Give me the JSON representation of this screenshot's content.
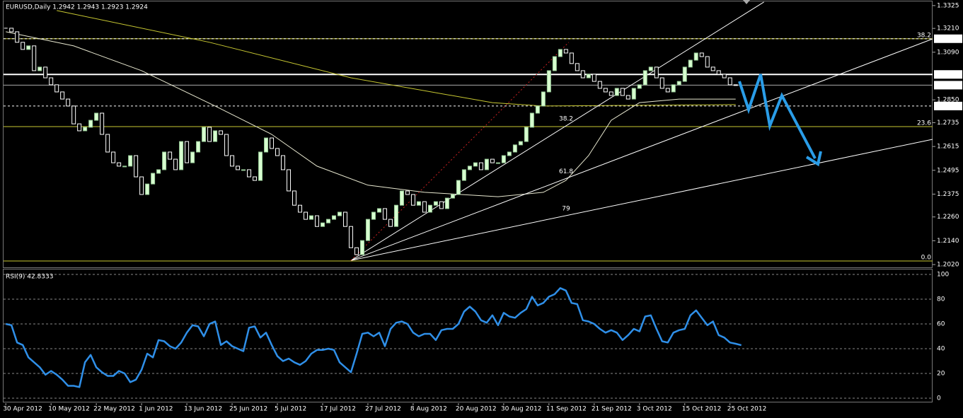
{
  "chart_data": [
    {
      "type": "candlestick",
      "title": "EURUSD,Daily  1.2942 1.2943 1.2923 1.2924",
      "closes": [
        1.3211,
        1.3193,
        1.314,
        1.3104,
        1.3122,
        1.2997,
        1.3015,
        1.2961,
        1.2926,
        1.289,
        1.2854,
        1.2819,
        1.2729,
        1.2694,
        1.2712,
        1.2747,
        1.2783,
        1.2676,
        1.2587,
        1.2533,
        1.2516,
        1.2516,
        1.2569,
        1.2462,
        1.2373,
        1.2426,
        1.248,
        1.2498,
        1.2587,
        1.2551,
        1.2498,
        1.264,
        1.2533,
        1.2587,
        1.264,
        1.2712,
        1.264,
        1.2694,
        1.2676,
        1.2569,
        1.2516,
        1.2498,
        1.2498,
        1.2462,
        1.2444,
        1.2587,
        1.2658,
        1.2605,
        1.2569,
        1.2498,
        1.2391,
        1.2319,
        1.2284,
        1.2248,
        1.2266,
        1.2212,
        1.223,
        1.2248,
        1.2266,
        1.2284,
        1.2212,
        1.2105,
        1.207,
        1.2141,
        1.2248,
        1.2284,
        1.2302,
        1.2248,
        1.2212,
        1.2319,
        1.2391,
        1.2373,
        1.2319,
        1.2337,
        1.2284,
        1.2319,
        1.2337,
        1.2302,
        1.2355,
        1.2373,
        1.2444,
        1.2498,
        1.2516,
        1.2533,
        1.2498,
        1.2551,
        1.2533,
        1.2533,
        1.2569,
        1.2587,
        1.2623,
        1.264,
        1.2712,
        1.2783,
        1.2819,
        1.289,
        1.2997,
        1.3068,
        1.3104,
        1.3086,
        1.3033,
        1.2997,
        1.2961,
        1.2979,
        1.2943,
        1.2908,
        1.289,
        1.2872,
        1.2908,
        1.2872,
        1.2854,
        1.2908,
        1.2926,
        1.2997,
        1.3015,
        1.2961,
        1.2908,
        1.289,
        1.2926,
        1.2943,
        1.3015,
        1.305,
        1.3086,
        1.3068,
        1.3015,
        1.2997,
        1.2979,
        1.2961,
        1.2926,
        1.2924
      ],
      "up_color": "#d8ffd0",
      "down_color": "#000000",
      "xlim": [
        -0.4,
        163.8
      ],
      "ylim": [
        1.2006,
        1.3346
      ],
      "yticks": [
        1.3325,
        {
          "value": 1.321,
          "label": "1.3210"
        },
        {
          "value": 1.309,
          "label": "1.3090"
        },
        {
          "value": 1.285,
          "label": "1.2850"
        },
        1.2735,
        1.2615,
        1.2495,
        1.2375,
        {
          "value": 1.226,
          "label": "1.2260"
        },
        {
          "value": 1.214,
          "label": "1.2140"
        },
        {
          "value": 1.202,
          "label": "1.2020"
        }
      ],
      "overlays": [
        {
          "color": "#c8c832",
          "x": [
            9,
            36,
            61,
            86,
            95,
            129
          ],
          "values": [
            1.33,
            1.314,
            1.2961,
            1.2836,
            1.2819,
            1.2826
          ]
        },
        {
          "color": "#e8e8d0",
          "x": [
            0,
            12,
            24,
            37,
            47,
            55,
            64,
            74,
            87,
            95,
            99,
            103,
            107,
            112,
            119,
            129
          ],
          "values": [
            1.3193,
            1.3122,
            1.2997,
            1.2819,
            1.2676,
            1.2516,
            1.242,
            1.2384,
            1.2362,
            1.2384,
            1.2444,
            1.2569,
            1.2747,
            1.2836,
            1.2854,
            1.2854
          ]
        }
      ],
      "fan_lines": [
        {
          "label": "38.2",
          "x": [
            61,
            134
          ],
          "values": [
            1.2041,
            1.3343
          ]
        },
        {
          "label": "61.8",
          "x": [
            61,
            163.8
          ],
          "values": [
            1.2041,
            1.3157
          ]
        },
        {
          "label": "79",
          "x": [
            61,
            163.8
          ],
          "values": [
            1.2041,
            1.2651
          ]
        }
      ],
      "retracement_line": {
        "color": "#cc2222",
        "x": [
          61,
          99.5
        ],
        "values": [
          1.2041,
          1.314
        ]
      },
      "fib_levels": [
        {
          "value": 1.3158,
          "label": "38.2"
        },
        {
          "value": 1.2715,
          "label": "23.6"
        },
        {
          "value": 1.2038,
          "label": "0.0"
        }
      ],
      "levels": [
        {
          "value": 1.3158,
          "style": "dashed"
        },
        {
          "value": 1.2978,
          "style": "solid"
        },
        {
          "value": 1.2924,
          "style": "current"
        },
        {
          "value": 1.2819,
          "style": "dashed"
        }
      ]
    },
    {
      "type": "line",
      "title": "RSI(9) 42.8333",
      "color": "#2f8fe8",
      "values": [
        60,
        59,
        45,
        43,
        33,
        29,
        25,
        19,
        22,
        19,
        15,
        10,
        10,
        9,
        29,
        35,
        25,
        21,
        18,
        18,
        22,
        20,
        13,
        15,
        23,
        36,
        33,
        47,
        46,
        42,
        40,
        45,
        53,
        59,
        58,
        50,
        60,
        62,
        43,
        46,
        42,
        40,
        38,
        57,
        58,
        49,
        53,
        43,
        34,
        30,
        32,
        29,
        27,
        30,
        36,
        39,
        39,
        40,
        39,
        29,
        25,
        21,
        36,
        52,
        53,
        50,
        53,
        42,
        56,
        61,
        62,
        60,
        53,
        50,
        52,
        52,
        47,
        55,
        56,
        56,
        60,
        70,
        74,
        70,
        63,
        61,
        67,
        59,
        69,
        66,
        65,
        69,
        72,
        82,
        75,
        77,
        82,
        84,
        89,
        87,
        77,
        76,
        63,
        62,
        60,
        56,
        53,
        55,
        53,
        47,
        51,
        56,
        54,
        66,
        67,
        56,
        46,
        45,
        53,
        55,
        56,
        67,
        71,
        65,
        59,
        62,
        51,
        49,
        45,
        44,
        42.8333
      ],
      "xlim": [
        -0.4,
        163.8
      ],
      "ylim": [
        -3.4,
        104
      ],
      "yticks": [
        100,
        80,
        60,
        40,
        20,
        0
      ],
      "grid": true,
      "xticks": [
        {
          "value": 0,
          "label": "30 Apr 2012"
        },
        {
          "value": 8,
          "label": "10 May 2012"
        },
        {
          "value": 16,
          "label": "22 May 2012"
        },
        {
          "value": 24,
          "label": "1 Jun 2012"
        },
        {
          "value": 32,
          "label": "13 Jun 2012"
        },
        {
          "value": 40,
          "label": "25 Jun 2012"
        },
        {
          "value": 48,
          "label": "5 Jul 2012"
        },
        {
          "value": 56,
          "label": "17 Jul 2012"
        },
        {
          "value": 64,
          "label": "27 Jul 2012"
        },
        {
          "value": 72,
          "label": "8 Aug 2012"
        },
        {
          "value": 80,
          "label": "20 Aug 2012"
        },
        {
          "value": 88,
          "label": "30 Aug 2012"
        },
        {
          "value": 96,
          "label": "11 Sep 2012"
        },
        {
          "value": 104,
          "label": "21 Sep 2012"
        },
        {
          "value": 112,
          "label": "3 Oct 2012"
        },
        {
          "value": 120,
          "label": "15 Oct 2012"
        },
        {
          "value": 128,
          "label": "25 Oct 2012"
        }
      ]
    }
  ]
}
